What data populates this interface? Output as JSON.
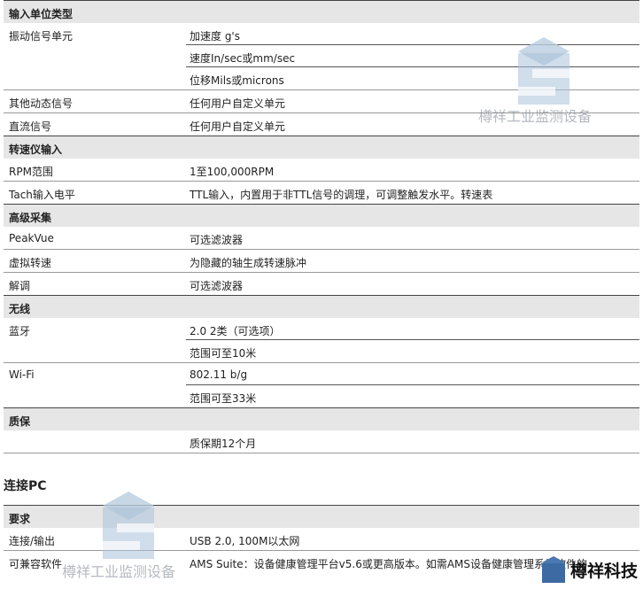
{
  "table1": {
    "rows": [
      {
        "type": "header",
        "left": "输入单位类型",
        "right": ""
      },
      {
        "type": "row",
        "left": "振动信号单元",
        "right": "加速度 g's"
      },
      {
        "type": "row",
        "left": "",
        "right": "速度In/sec或mm/sec"
      },
      {
        "type": "row",
        "left": "",
        "right": "位移Mils或microns"
      },
      {
        "type": "row",
        "left": "其他动态信号",
        "right": "任何用户自定义单元"
      },
      {
        "type": "row",
        "left": "直流信号",
        "right": "任何用户自定义单元"
      },
      {
        "type": "header",
        "left": "转速仪输入",
        "right": ""
      },
      {
        "type": "row",
        "left": "RPM范围",
        "right": "1至100,000RPM"
      },
      {
        "type": "row",
        "left": "Tach输入电平",
        "right": "TTL输入，内置用于非TTL信号的调理，可调整触发水平。转速表"
      },
      {
        "type": "header",
        "left": "高级采集",
        "right": ""
      },
      {
        "type": "row",
        "left": "PeakVue",
        "right": "可选滤波器"
      },
      {
        "type": "row",
        "left": "虚拟转速",
        "right": "为隐藏的轴生成转速脉冲"
      },
      {
        "type": "row",
        "left": "解调",
        "right": "可选滤波器"
      },
      {
        "type": "header",
        "left": "无线",
        "right": ""
      },
      {
        "type": "row",
        "left": "蓝牙",
        "right": "2.0 2类（可选项）"
      },
      {
        "type": "row",
        "left": "",
        "right": "范围可至10米"
      },
      {
        "type": "row",
        "left": "Wi-Fi",
        "right": "802.11 b/g"
      },
      {
        "type": "row",
        "left": "",
        "right": "范围可至33米"
      },
      {
        "type": "header",
        "left": "质保",
        "right": ""
      },
      {
        "type": "row",
        "left": "",
        "right": "质保期12个月"
      }
    ]
  },
  "section2": {
    "title": "连接PC",
    "rows": [
      {
        "type": "header",
        "left": "要求",
        "right": ""
      },
      {
        "type": "row",
        "left": "连接/输出",
        "right": "USB 2.0, 100M以太网"
      },
      {
        "type": "row",
        "left": "可兼容软件",
        "right": "AMS Suite：设备健康管理平台v5.6或更高版本。如需AMS设备健康管理系统软件的"
      }
    ]
  },
  "watermark": {
    "text": "樽祥工业监测设备",
    "brand": "樽祥科技",
    "color": "#8fb0cf"
  }
}
